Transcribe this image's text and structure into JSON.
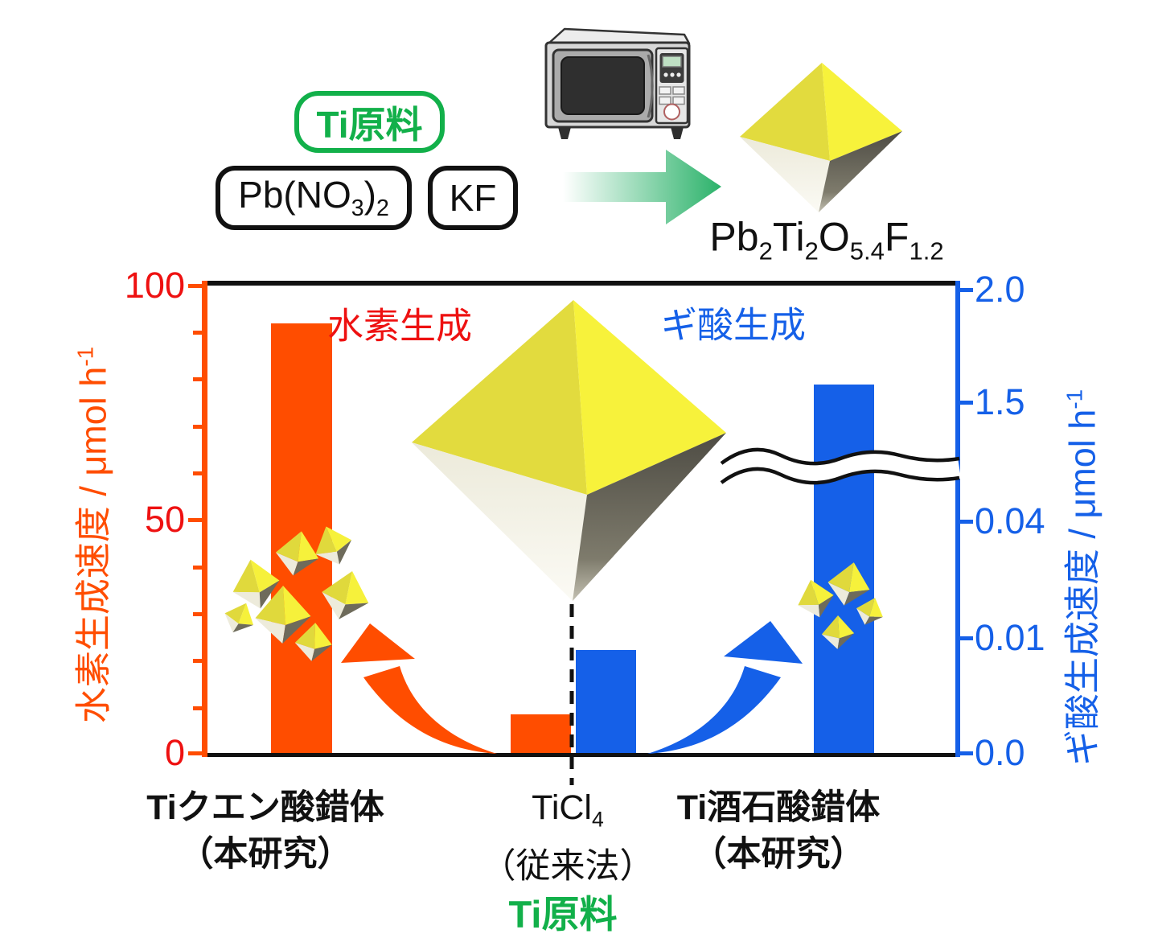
{
  "scheme": {
    "ti_source_label": "Ti原料",
    "reagents": [
      "Pb(NO~3~)~2~",
      "KF"
    ],
    "microwave_icon": "microwave-oven",
    "reaction_arrow_icon": "green-gradient-right-arrow",
    "product_crystal_icon": "yellow-octahedron-crystal",
    "product_formula": "Pb~2~Ti~2~O~5.4~F~1.2~",
    "green": "#12B04A",
    "arrow_gradient_end": "#2BB26A"
  },
  "chart_data": {
    "type": "bar",
    "dual_axis": true,
    "categories": [
      {
        "name": "Tiクエン酸錯体",
        "note": "（本研究）",
        "bold": true
      },
      {
        "name": "TiCl~4~",
        "note": "（従来法）",
        "bold": false
      },
      {
        "name": "Ti酒石酸錯体",
        "note": "（本研究）",
        "bold": true
      }
    ],
    "xlabel": "Ti原料",
    "series": [
      {
        "name": "水素生成",
        "axis": "left",
        "color": "#FF4D00",
        "label_color": "#EE1111",
        "unit": "μmol h⁻¹",
        "values": [
          92,
          8.5,
          null
        ]
      },
      {
        "name": "ギ酸生成",
        "axis": "right",
        "color": "#1560E8",
        "label_color": "#1560E8",
        "unit": "μmol h⁻¹",
        "values": [
          null,
          0.009,
          1.58
        ]
      }
    ],
    "left_axis": {
      "label": "水素生成速度 / μmol h^-1^",
      "range": [
        0,
        100
      ],
      "tick_labels": [
        "0",
        "50",
        "100"
      ],
      "minor_tick_step": 10,
      "axis_color": "#FF4D00",
      "number_color": "#EE1111"
    },
    "right_axis": {
      "label": "ギ酸生成速度 / μmol h^-1^",
      "broken_axis": true,
      "tick_labels": [
        "0.0",
        "0.01",
        "0.04",
        "1.5",
        "2.0"
      ],
      "axis_color": "#1560E8"
    },
    "legend_position": "inside-top",
    "grid": false,
    "crystal_annotation_icon": "yellow-octahedra-cluster"
  }
}
